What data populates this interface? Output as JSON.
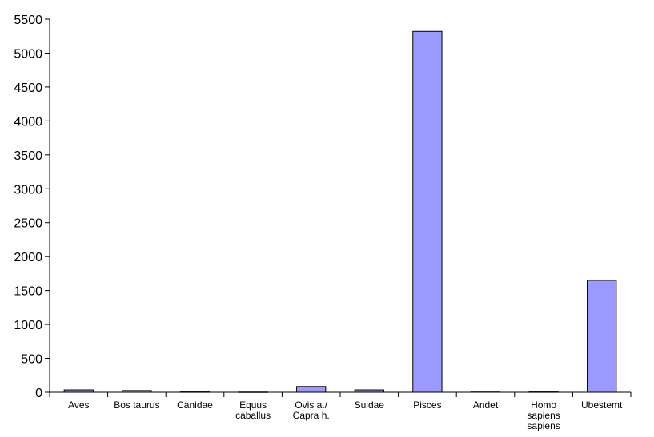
{
  "chart_data": {
    "type": "bar",
    "title": "",
    "xlabel": "",
    "ylabel": "",
    "categories": [
      [
        "Aves"
      ],
      [
        "Bos taurus"
      ],
      [
        "Canidae"
      ],
      [
        "Equus",
        "caballus"
      ],
      [
        "Ovis a./",
        "Capra h."
      ],
      [
        "Suidae"
      ],
      [
        "Pisces"
      ],
      [
        "Andet"
      ],
      [
        "Homo",
        "sapiens",
        "sapiens"
      ],
      [
        "Ubestemt"
      ]
    ],
    "values": [
      35,
      25,
      5,
      3,
      85,
      35,
      5320,
      15,
      5,
      1650
    ],
    "ylim": [
      0,
      5500
    ],
    "yticks": [
      0,
      500,
      1000,
      1500,
      2000,
      2500,
      3000,
      3500,
      4000,
      4500,
      5000,
      5500
    ],
    "grid": false,
    "legend": "none",
    "bar_color": "#9999ff"
  }
}
